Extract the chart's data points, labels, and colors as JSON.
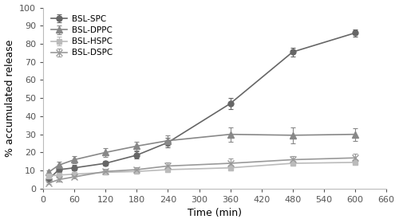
{
  "title": "",
  "xlabel": "Time (min)",
  "ylabel": "% accumulated release",
  "xlim": [
    0,
    660
  ],
  "ylim": [
    0,
    100
  ],
  "xticks": [
    0,
    60,
    120,
    180,
    240,
    300,
    360,
    420,
    480,
    540,
    600,
    660
  ],
  "yticks": [
    0,
    10,
    20,
    30,
    40,
    50,
    60,
    70,
    80,
    90,
    100
  ],
  "series": [
    {
      "label": "BSL-SPC",
      "color": "#666666",
      "marker": "o",
      "markersize": 5,
      "markerfacecolor": "#666666",
      "linewidth": 1.2,
      "x": [
        10,
        30,
        60,
        120,
        180,
        240,
        360,
        480,
        600
      ],
      "y": [
        5.0,
        10.5,
        11.5,
        14.0,
        18.5,
        25.5,
        47.0,
        75.5,
        86.0
      ],
      "yerr": [
        0.5,
        1.5,
        1.5,
        1.5,
        2.0,
        2.5,
        3.0,
        2.5,
        2.0
      ]
    },
    {
      "label": "BSL-DPPC",
      "color": "#888888",
      "marker": "^",
      "markersize": 6,
      "markerfacecolor": "#888888",
      "linewidth": 1.2,
      "x": [
        10,
        30,
        60,
        120,
        180,
        240,
        360,
        480,
        600
      ],
      "y": [
        9.0,
        13.0,
        16.0,
        20.0,
        23.5,
        26.5,
        30.0,
        29.5,
        30.0
      ],
      "yerr": [
        1.0,
        2.0,
        2.0,
        2.5,
        2.5,
        3.0,
        4.0,
        4.5,
        3.5
      ]
    },
    {
      "label": "BSL-HSPC",
      "color": "#bbbbbb",
      "marker": "s",
      "markersize": 5,
      "markerfacecolor": "#bbbbbb",
      "linewidth": 1.2,
      "x": [
        10,
        30,
        60,
        120,
        180,
        240,
        360,
        480,
        600
      ],
      "y": [
        7.0,
        7.5,
        8.0,
        9.0,
        9.5,
        10.5,
        11.5,
        14.0,
        14.5
      ],
      "yerr": [
        0.5,
        0.8,
        0.8,
        1.0,
        1.0,
        1.5,
        1.5,
        1.5,
        1.5
      ]
    },
    {
      "label": "BSL-DSPC",
      "color": "#999999",
      "marker": "x",
      "markersize": 6,
      "markerfacecolor": "#999999",
      "linewidth": 1.2,
      "x": [
        10,
        30,
        60,
        120,
        180,
        240,
        360,
        480,
        600
      ],
      "y": [
        3.0,
        5.0,
        6.5,
        9.5,
        10.5,
        12.5,
        14.0,
        16.0,
        17.0
      ],
      "yerr": [
        0.5,
        1.0,
        1.0,
        1.5,
        1.5,
        2.0,
        2.5,
        2.0,
        2.5
      ]
    }
  ],
  "legend_loc": "upper left",
  "legend_fontsize": 7.5,
  "legend_labelspacing": 0.4,
  "axis_fontsize": 9,
  "tick_fontsize": 8,
  "background_color": "#ffffff",
  "elinewidth": 0.8,
  "capsize": 2.0
}
